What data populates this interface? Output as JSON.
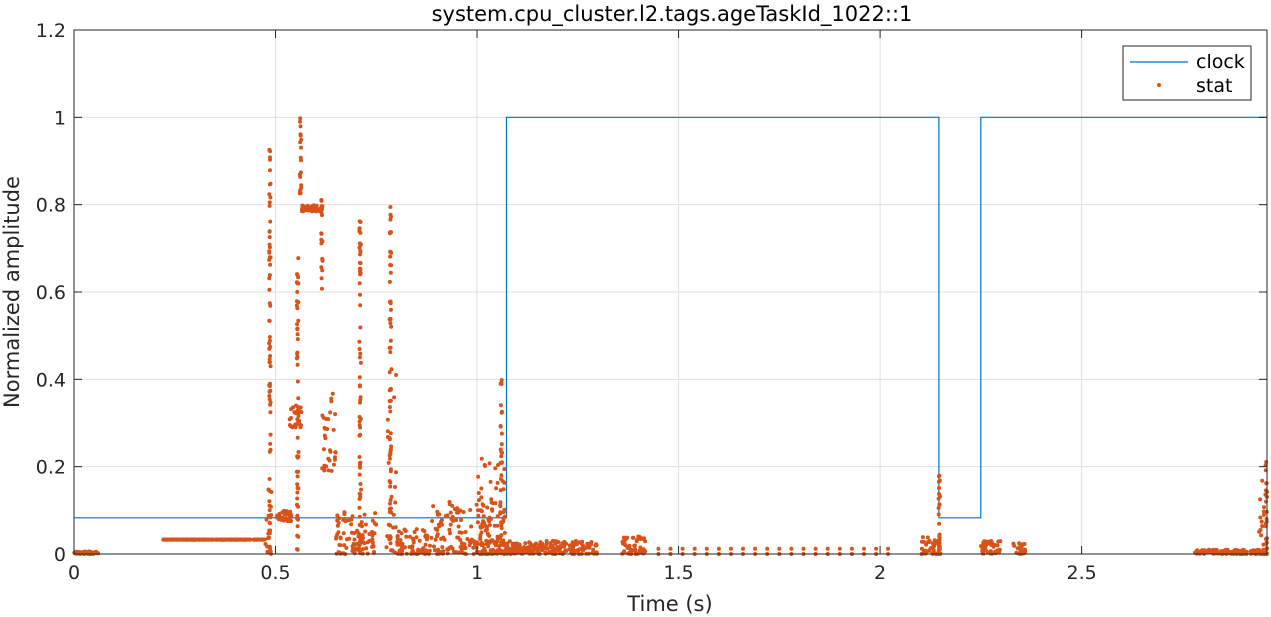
{
  "chart_data": {
    "type": "line",
    "title": "system.cpu_cluster.l2.tags.ageTaskId_1022::1",
    "xlabel": "Time (s)",
    "ylabel": "Normalized amplitude",
    "xlim": [
      0,
      2.96
    ],
    "ylim": [
      0,
      1.2
    ],
    "xticks": [
      0,
      0.5,
      1,
      1.5,
      2,
      2.5
    ],
    "xtick_labels": [
      "0",
      "0.5",
      "1",
      "1.5",
      "2",
      "2.5"
    ],
    "yticks": [
      0,
      0.2,
      0.4,
      0.6,
      0.8,
      1,
      1.2
    ],
    "ytick_labels": [
      "0",
      "0.2",
      "0.4",
      "0.6",
      "0.8",
      "1",
      "1.2"
    ],
    "grid": true,
    "legend_position": "top-right",
    "colors": {
      "clock": "#0072BD",
      "stat": "#D95319",
      "grid": "#DFDFDF",
      "axis": "#262626"
    },
    "series": [
      {
        "name": "clock",
        "style": "line",
        "x": [
          0,
          1.073,
          1.073,
          2.146,
          2.146,
          2.25,
          2.25,
          2.96
        ],
        "y": [
          0.083,
          0.083,
          1,
          1,
          0.083,
          0.083,
          1,
          1
        ]
      },
      {
        "name": "stat",
        "style": "dots",
        "segments": [
          {
            "x": [
              0.0,
              0.06
            ],
            "y": [
              0.0,
              0.006
            ]
          },
          {
            "x": [
              0.22,
              0.475
            ],
            "y": [
              0.033,
              0.033
            ]
          },
          {
            "x": [
              0.475,
              0.49
            ],
            "y": [
              0.0,
              0.15
            ]
          },
          {
            "x": [
              0.5,
              0.54
            ],
            "y": [
              0.075,
              0.1
            ]
          },
          {
            "x": [
              0.535,
              0.565
            ],
            "y": [
              0.29,
              0.35
            ]
          },
          {
            "x": [
              0.565,
              0.615
            ],
            "y": [
              0.785,
              0.8
            ]
          },
          {
            "x": [
              0.615,
              0.65
            ],
            "y": [
              0.19,
              0.38
            ]
          },
          {
            "x": [
              0.65,
              0.75
            ],
            "y": [
              0.0,
              0.1
            ]
          },
          {
            "x": [
              0.77,
              0.8
            ],
            "y": [
              0.0,
              0.45
            ]
          },
          {
            "x": [
              0.8,
              0.88
            ],
            "y": [
              0.0,
              0.06
            ]
          },
          {
            "x": [
              0.88,
              1.07
            ],
            "y": [
              0.0,
              0.12
            ]
          },
          {
            "x": [
              1.0,
              1.07
            ],
            "y": [
              0.0,
              0.22
            ]
          },
          {
            "x": [
              1.07,
              1.3
            ],
            "y": [
              0.0,
              0.03
            ]
          },
          {
            "x": [
              1.36,
              1.42
            ],
            "y": [
              0.0,
              0.04
            ]
          },
          {
            "x": [
              2.1,
              2.15
            ],
            "y": [
              0.0,
              0.04
            ]
          },
          {
            "x": [
              2.25,
              2.3
            ],
            "y": [
              0.0,
              0.03
            ]
          },
          {
            "x": [
              2.33,
              2.36
            ],
            "y": [
              0.0,
              0.03
            ]
          },
          {
            "x": [
              2.78,
              2.96
            ],
            "y": [
              0.0,
              0.01
            ]
          },
          {
            "x": [
              2.94,
              2.96
            ],
            "y": [
              0.0,
              0.2
            ]
          }
        ],
        "spikes": [
          {
            "x": 0.486,
            "y": [
              0.0,
              0.93
            ]
          },
          {
            "x": 0.555,
            "y": [
              0.0,
              0.68
            ]
          },
          {
            "x": 0.562,
            "y": [
              0.8,
              1.0
            ]
          },
          {
            "x": 0.615,
            "y": [
              0.6,
              0.82
            ]
          },
          {
            "x": 0.71,
            "y": [
              0.0,
              0.79
            ]
          },
          {
            "x": 0.785,
            "y": [
              0.0,
              0.8
            ]
          },
          {
            "x": 1.06,
            "y": [
              0.0,
              0.4
            ]
          },
          {
            "x": 2.147,
            "y": [
              0.0,
              0.18
            ]
          },
          {
            "x": 2.958,
            "y": [
              0.0,
              0.22
            ]
          }
        ],
        "sparse_dots": {
          "x_start": 1.45,
          "x_end": 2.05,
          "step": 0.03,
          "y": [
            0.0,
            0.012
          ]
        }
      }
    ]
  }
}
